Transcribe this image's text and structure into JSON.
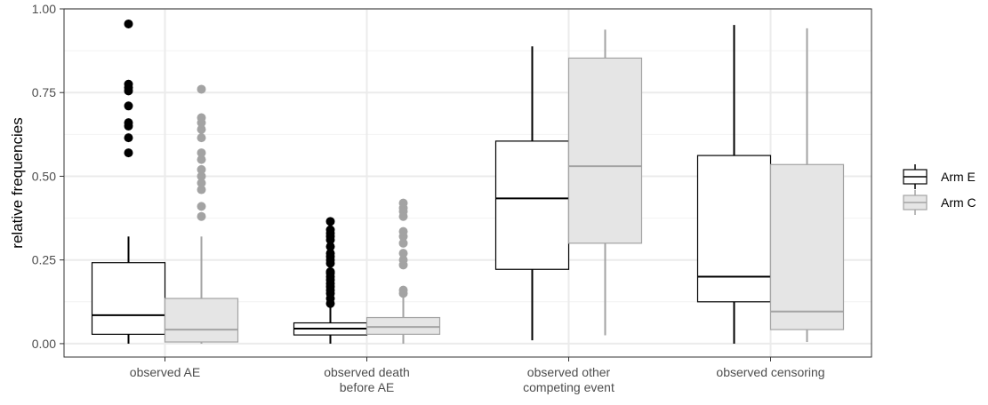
{
  "chart_data": {
    "type": "boxplot",
    "title": "",
    "xlabel": "",
    "ylabel": "relative frequencies",
    "ylim": [
      -0.04,
      1.0
    ],
    "yticks": [
      "0.00",
      "0.25",
      "0.50",
      "0.75",
      "1.00"
    ],
    "ytick_values": [
      0,
      0.25,
      0.5,
      0.75,
      1.0
    ],
    "grid": true,
    "legend_position": "right",
    "categories": [
      [
        "observed AE"
      ],
      [
        "observed death",
        "before AE"
      ],
      [
        "observed other",
        "competing event"
      ],
      [
        "observed censoring"
      ]
    ],
    "series": [
      {
        "name": "Arm E",
        "fill": "#ffffff",
        "stroke": "#000000",
        "median_color": "#000000",
        "boxes": [
          {
            "min": 0.0,
            "q1": 0.028,
            "median": 0.085,
            "q3": 0.242,
            "max": 0.32,
            "outliers": [
              0.57,
              0.615,
              0.65,
              0.66,
              0.71,
              0.755,
              0.765,
              0.775,
              0.955
            ]
          },
          {
            "min": 0.0,
            "q1": 0.026,
            "median": 0.045,
            "q3": 0.062,
            "max": 0.115,
            "outliers": [
              0.12,
              0.135,
              0.15,
              0.16,
              0.17,
              0.18,
              0.19,
              0.2,
              0.21,
              0.215,
              0.24,
              0.25,
              0.26,
              0.27,
              0.29,
              0.31,
              0.32,
              0.33,
              0.34,
              0.365
            ]
          },
          {
            "min": 0.01,
            "q1": 0.222,
            "median": 0.434,
            "q3": 0.605,
            "max": 0.888,
            "outliers": []
          },
          {
            "min": 0.0,
            "q1": 0.125,
            "median": 0.2,
            "q3": 0.562,
            "max": 0.952,
            "outliers": []
          }
        ]
      },
      {
        "name": "Arm C",
        "fill": "#e5e5e5",
        "stroke": "#a3a3a3",
        "median_color": "#a3a3a3",
        "boxes": [
          {
            "min": 0.0,
            "q1": 0.005,
            "median": 0.042,
            "q3": 0.135,
            "max": 0.32,
            "outliers": [
              0.38,
              0.41,
              0.46,
              0.48,
              0.5,
              0.52,
              0.55,
              0.57,
              0.615,
              0.64,
              0.66,
              0.675,
              0.76
            ]
          },
          {
            "min": 0.0,
            "q1": 0.028,
            "median": 0.05,
            "q3": 0.078,
            "max": 0.14,
            "outliers": [
              0.15,
              0.16,
              0.235,
              0.25,
              0.27,
              0.3,
              0.32,
              0.335,
              0.38,
              0.395,
              0.405,
              0.42
            ]
          },
          {
            "min": 0.025,
            "q1": 0.3,
            "median": 0.53,
            "q3": 0.853,
            "max": 0.938,
            "outliers": []
          },
          {
            "min": 0.005,
            "q1": 0.042,
            "median": 0.096,
            "q3": 0.535,
            "max": 0.942,
            "outliers": []
          }
        ]
      }
    ]
  }
}
